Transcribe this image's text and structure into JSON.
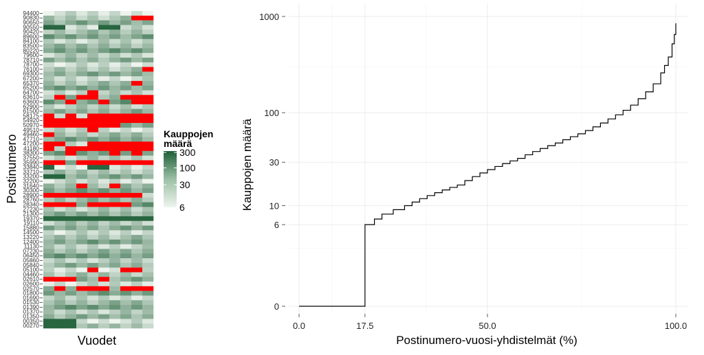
{
  "chart_data": [
    {
      "type": "heatmap",
      "xlabel": "Vuodet",
      "ylabel": "Postinumero",
      "y_tick_labels": [
        "94400",
        "90830",
        "90650",
        "90550",
        "90420",
        "89600",
        "84100",
        "83500",
        "80220",
        "79600",
        "78710",
        "78700",
        "76100",
        "69300",
        "67200",
        "65370",
        "65200",
        "64700",
        "63610",
        "63600",
        "62900",
        "61500",
        "58175",
        "54920",
        "50970",
        "49510",
        "49460",
        "47710",
        "47200",
        "41180",
        "38300",
        "37550",
        "35990",
        "33840",
        "33710",
        "33200",
        "32200",
        "31640",
        "30300",
        "28900",
        "28760",
        "28340",
        "27230",
        "21300",
        "19370",
        "19110",
        "15880",
        "14500",
        "13220",
        "12400",
        "11130",
        "07230",
        "06450",
        "05860",
        "05840",
        "05100",
        "04460",
        "02610",
        "02600",
        "02570",
        "01800",
        "01690",
        "01530",
        "01390",
        "01370",
        "01350",
        "00350",
        "00270"
      ],
      "n_columns": 10,
      "legend_title": "Kauppojen määrä",
      "legend_ticks": [
        "300",
        "100",
        "30",
        "6"
      ],
      "scale": "log",
      "low_color": "#eef4ee",
      "high_color": "#1e5f37",
      "missing_color": "#ff0000",
      "missing_cells": [
        [
          1,
          8
        ],
        [
          1,
          9
        ],
        [
          12,
          9
        ],
        [
          15,
          8
        ],
        [
          17,
          4
        ],
        [
          18,
          1
        ],
        [
          18,
          3
        ],
        [
          18,
          4
        ],
        [
          18,
          7
        ],
        [
          18,
          8
        ],
        [
          18,
          9
        ],
        [
          19,
          2
        ],
        [
          19,
          5
        ],
        [
          19,
          8
        ],
        [
          19,
          9
        ],
        [
          22,
          0
        ],
        [
          22,
          2
        ],
        [
          22,
          4
        ],
        [
          22,
          5
        ],
        [
          22,
          6
        ],
        [
          22,
          7
        ],
        [
          22,
          8
        ],
        [
          22,
          9
        ],
        [
          23,
          0
        ],
        [
          23,
          1
        ],
        [
          23,
          2
        ],
        [
          23,
          3
        ],
        [
          23,
          4
        ],
        [
          23,
          5
        ],
        [
          23,
          6
        ],
        [
          23,
          7
        ],
        [
          23,
          8
        ],
        [
          23,
          9
        ],
        [
          24,
          0
        ],
        [
          24,
          1
        ],
        [
          24,
          2
        ],
        [
          24,
          3
        ],
        [
          24,
          4
        ],
        [
          24,
          5
        ],
        [
          24,
          6
        ],
        [
          25,
          4
        ],
        [
          26,
          0
        ],
        [
          28,
          0
        ],
        [
          28,
          1
        ],
        [
          28,
          4
        ],
        [
          28,
          5
        ],
        [
          28,
          6
        ],
        [
          28,
          7
        ],
        [
          28,
          8
        ],
        [
          28,
          9
        ],
        [
          29,
          0
        ],
        [
          29,
          2
        ],
        [
          29,
          3
        ],
        [
          29,
          4
        ],
        [
          29,
          5
        ],
        [
          29,
          6
        ],
        [
          29,
          7
        ],
        [
          29,
          8
        ],
        [
          29,
          9
        ],
        [
          30,
          2
        ],
        [
          30,
          6
        ],
        [
          30,
          8
        ],
        [
          32,
          0
        ],
        [
          32,
          1
        ],
        [
          32,
          3
        ],
        [
          32,
          4
        ],
        [
          32,
          5
        ],
        [
          32,
          6
        ],
        [
          32,
          7
        ],
        [
          32,
          8
        ],
        [
          32,
          9
        ],
        [
          37,
          3
        ],
        [
          37,
          6
        ],
        [
          39,
          0
        ],
        [
          39,
          1
        ],
        [
          39,
          2
        ],
        [
          39,
          3
        ],
        [
          39,
          4
        ],
        [
          39,
          5
        ],
        [
          39,
          6
        ],
        [
          39,
          7
        ],
        [
          39,
          8
        ],
        [
          41,
          0
        ],
        [
          41,
          1
        ],
        [
          41,
          2
        ],
        [
          41,
          4
        ],
        [
          41,
          5
        ],
        [
          41,
          6
        ],
        [
          41,
          7
        ],
        [
          55,
          4
        ],
        [
          55,
          7
        ],
        [
          55,
          8
        ],
        [
          57,
          0
        ],
        [
          57,
          1
        ],
        [
          57,
          2
        ],
        [
          57,
          5
        ],
        [
          59,
          1
        ],
        [
          59,
          3
        ],
        [
          59,
          4
        ],
        [
          59,
          5
        ],
        [
          59,
          7
        ],
        [
          59,
          8
        ],
        [
          59,
          9
        ]
      ],
      "high_cells": [
        [
          3,
          0
        ],
        [
          3,
          1
        ],
        [
          3,
          5
        ],
        [
          3,
          6
        ],
        [
          33,
          0
        ],
        [
          33,
          4
        ],
        [
          33,
          5
        ],
        [
          35,
          0
        ],
        [
          35,
          1
        ],
        [
          44,
          0
        ],
        [
          44,
          1
        ],
        [
          44,
          2
        ],
        [
          44,
          3
        ],
        [
          44,
          4
        ],
        [
          44,
          5
        ],
        [
          44,
          6
        ],
        [
          44,
          7
        ],
        [
          44,
          8
        ],
        [
          44,
          9
        ],
        [
          66,
          0
        ],
        [
          66,
          1
        ],
        [
          66,
          2
        ],
        [
          67,
          0
        ],
        [
          67,
          1
        ],
        [
          67,
          2
        ]
      ]
    },
    {
      "type": "line",
      "step": true,
      "xlabel": "Postinumero-vuosi-yhdistelmät (%)",
      "ylabel": "Kauppojen määrä",
      "x_ticks": [
        "0.0",
        "17.5",
        "50.0",
        "100.0"
      ],
      "y_ticks": [
        "0",
        "6",
        "10",
        "30",
        "100",
        "1000"
      ],
      "xlim": [
        0,
        100
      ],
      "y_scale": "log1p",
      "grid": true,
      "points": [
        [
          0,
          0
        ],
        [
          17.5,
          0
        ],
        [
          17.5,
          6
        ],
        [
          20,
          6
        ],
        [
          20,
          7
        ],
        [
          22,
          7
        ],
        [
          22,
          8
        ],
        [
          25,
          8
        ],
        [
          25,
          9
        ],
        [
          28,
          9
        ],
        [
          28,
          10
        ],
        [
          30,
          10
        ],
        [
          30,
          11
        ],
        [
          32,
          11
        ],
        [
          32,
          12
        ],
        [
          34,
          12
        ],
        [
          34,
          13
        ],
        [
          36,
          14
        ],
        [
          38,
          15
        ],
        [
          40,
          16
        ],
        [
          42,
          17
        ],
        [
          44,
          19
        ],
        [
          46,
          21
        ],
        [
          48,
          23
        ],
        [
          50,
          25
        ],
        [
          52,
          27
        ],
        [
          54,
          29
        ],
        [
          56,
          31
        ],
        [
          58,
          33
        ],
        [
          60,
          36
        ],
        [
          62,
          39
        ],
        [
          64,
          42
        ],
        [
          66,
          45
        ],
        [
          68,
          48
        ],
        [
          70,
          52
        ],
        [
          72,
          56
        ],
        [
          74,
          60
        ],
        [
          76,
          65
        ],
        [
          78,
          71
        ],
        [
          80,
          78
        ],
        [
          82,
          86
        ],
        [
          84,
          95
        ],
        [
          86,
          106
        ],
        [
          88,
          120
        ],
        [
          90,
          140
        ],
        [
          92,
          165
        ],
        [
          94,
          200
        ],
        [
          96,
          260
        ],
        [
          97,
          310
        ],
        [
          98,
          380
        ],
        [
          99,
          520
        ],
        [
          99.6,
          650
        ],
        [
          100,
          850
        ]
      ]
    }
  ]
}
